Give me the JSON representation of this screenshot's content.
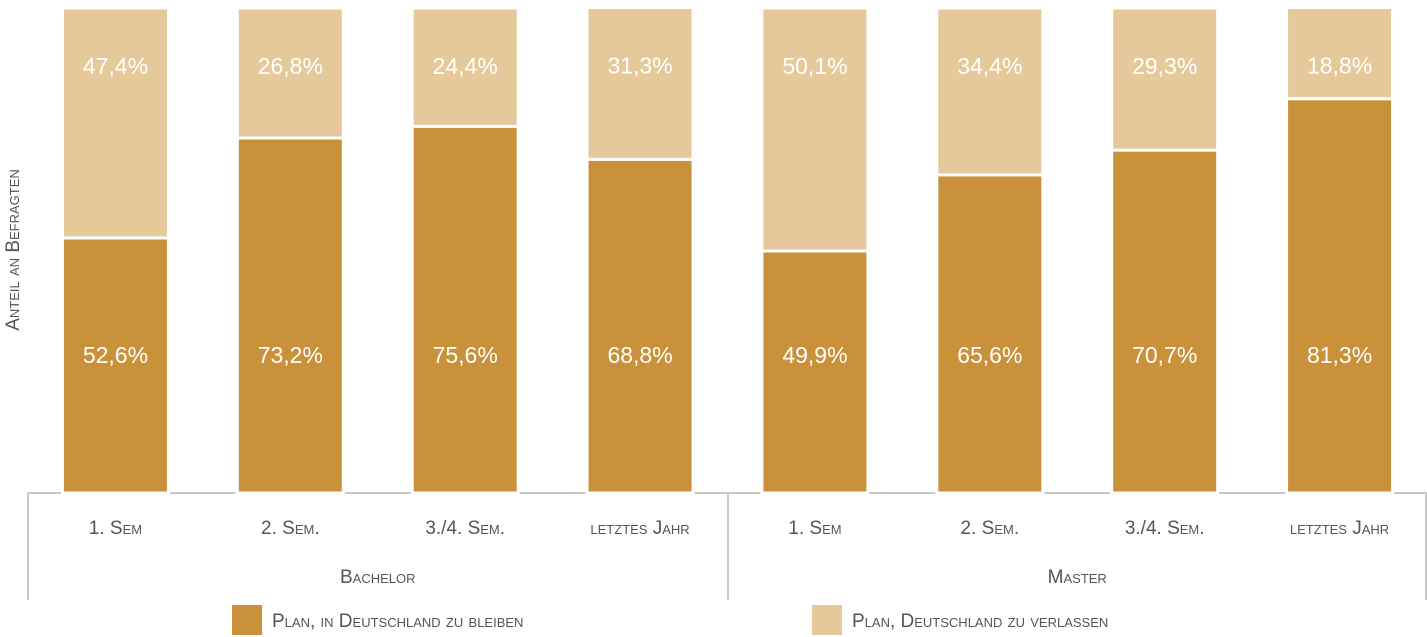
{
  "chart_data": {
    "type": "stacked_bar",
    "y_label": "Anteil an Befragten",
    "categories": [
      "1. Sem",
      "2. Sem.",
      "3./4. Sem.",
      "letztes Jahr",
      "1. Sem",
      "2. Sem.",
      "3./4. Sem.",
      "letztes Jahr"
    ],
    "groups": [
      "Bachelor",
      "Master"
    ],
    "ylim": [
      0,
      100
    ],
    "series": [
      {
        "name": "Plan, in Deutschland zu bleiben",
        "color": "#c9923a",
        "values": [
          52.6,
          73.2,
          75.6,
          68.8,
          49.9,
          65.6,
          70.7,
          81.3
        ],
        "value_labels": [
          "52,6%",
          "73,2%",
          "75,6%",
          "68,8%",
          "49,9%",
          "65,6%",
          "70,7%",
          "81,3%"
        ]
      },
      {
        "name": "Plan, Deutschland zu verlassen",
        "color": "#e6c99a",
        "values": [
          47.4,
          26.8,
          24.4,
          31.3,
          50.1,
          34.4,
          29.3,
          18.8
        ],
        "value_labels": [
          "47,4%",
          "26,8%",
          "24,4%",
          "31,3%",
          "50,1%",
          "34,4%",
          "29,3%",
          "18,8%"
        ]
      }
    ]
  }
}
